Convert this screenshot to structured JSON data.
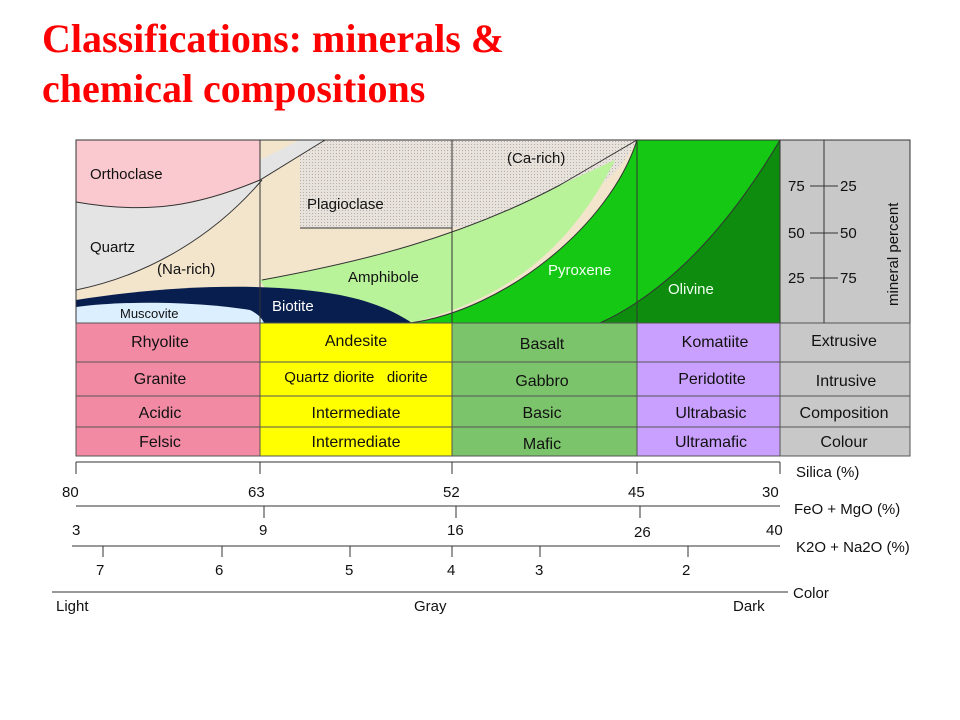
{
  "title": {
    "line1": "Classifications: minerals &",
    "line2": "chemical compositions"
  },
  "colors": {
    "title": "#ff0000",
    "felsic": "#f28aa4",
    "intermediate": "#ffff00",
    "mafic": "#7cc46c",
    "ultramafic": "#c9a0ff",
    "labels_column": "#c8c8c8",
    "orthoclase": "#f9c9cf",
    "quartz": "#e4e4e4",
    "plagioclase": "#f3e4cc",
    "ca_rich": "#e6ded6",
    "amphibole": "#b8f39a",
    "pyroxene": "#14c814",
    "olivine": "#0e8c0e",
    "biotite": "#081e4e",
    "muscovite": "#dcefff"
  },
  "minerals": {
    "orthoclase": "Orthoclase",
    "quartz": "Quartz",
    "na_rich": "(Na-rich)",
    "plagioclase": "Plagioclase",
    "ca_rich": "(Ca-rich)",
    "muscovite": "Muscovite",
    "biotite": "Biotite",
    "amphibole": "Amphibole",
    "pyroxene": "Pyroxene",
    "olivine": "Olivine"
  },
  "mineral_percent": {
    "axis_label": "mineral percent",
    "left": [
      "75",
      "50",
      "25"
    ],
    "right": [
      "25",
      "50",
      "75"
    ]
  },
  "rows": [
    {
      "cells": [
        "Rhyolite",
        "Andesite",
        "Basalt",
        "Komatiite"
      ],
      "label": "Extrusive"
    },
    {
      "cells": [
        "Granite",
        "Quartz diorite   diorite",
        "Gabbro",
        "Peridotite"
      ],
      "label": "Intrusive"
    },
    {
      "cells": [
        "Acidic",
        "Intermediate",
        "Basic",
        "Ultrabasic"
      ],
      "label": "Composition"
    },
    {
      "cells": [
        "Felsic",
        "Intermediate",
        "Mafic",
        "Ultramafic"
      ],
      "label": "Colour"
    }
  ],
  "scales": {
    "silica": {
      "label": "Silica (%)",
      "ticks": [
        "80",
        "63",
        "52",
        "45",
        "30"
      ]
    },
    "feo_mgo": {
      "label": "FeO + MgO (%)",
      "ticks": [
        "3",
        "9",
        "16",
        "26",
        "40"
      ]
    },
    "k2o_na2o": {
      "label": "K2O + Na2O (%)",
      "ticks": [
        "7",
        "6",
        "5",
        "4",
        "3",
        "2"
      ]
    },
    "color": {
      "label": "Color",
      "ticks": [
        "Light",
        "Gray",
        "Dark"
      ]
    }
  }
}
